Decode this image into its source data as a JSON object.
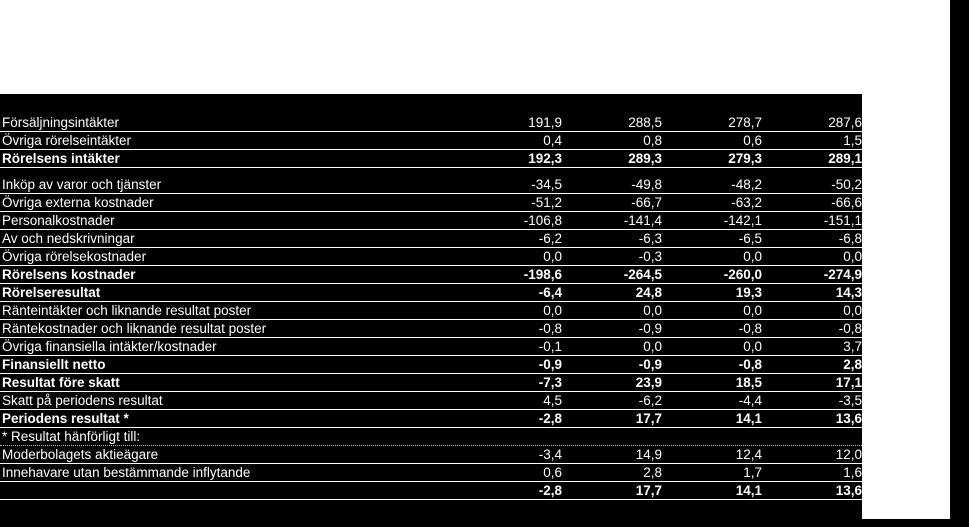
{
  "rows": [
    {
      "label": "Försäljningsintäkter",
      "v1": "191,9",
      "v2": "288,5",
      "v3": "278,7",
      "v4": "287,6"
    },
    {
      "label": "Övriga rörelseintäkter",
      "v1": "0,4",
      "v2": "0,8",
      "v3": "0,6",
      "v4": "1,5"
    },
    {
      "label": "Rörelsens intäkter",
      "v1": "192,3",
      "v2": "289,3",
      "v3": "279,3",
      "v4": "289,1"
    },
    {
      "label": "Inköp av varor och tjänster",
      "v1": "-34,5",
      "v2": "-49,8",
      "v3": "-48,2",
      "v4": "-50,2"
    },
    {
      "label": "Övriga externa kostnader",
      "v1": "-51,2",
      "v2": "-66,7",
      "v3": "-63,2",
      "v4": "-66,6"
    },
    {
      "label": "Personalkostnader",
      "v1": "-106,8",
      "v2": "-141,4",
      "v3": "-142,1",
      "v4": "-151,1"
    },
    {
      "label": "Av och nedskrivningar",
      "v1": "-6,2",
      "v2": "-6,3",
      "v3": "-6,5",
      "v4": "-6,8"
    },
    {
      "label": "Övriga rörelsekostnader",
      "v1": "0,0",
      "v2": "-0,3",
      "v3": "0,0",
      "v4": "0,0"
    },
    {
      "label": "Rörelsens kostnader",
      "v1": "-198,6",
      "v2": "-264,5",
      "v3": "-260,0",
      "v4": "-274,9"
    },
    {
      "label": "Rörelseresultat",
      "v1": "-6,4",
      "v2": "24,8",
      "v3": "19,3",
      "v4": "14,3"
    },
    {
      "label": "Ränteintäkter och liknande resultat poster",
      "v1": "0,0",
      "v2": "0,0",
      "v3": "0,0",
      "v4": "0,0"
    },
    {
      "label": "Räntekostnader och liknande resultat poster",
      "v1": "-0,8",
      "v2": "-0,9",
      "v3": "-0,8",
      "v4": "-0,8"
    },
    {
      "label": "Övriga finansiella intäkter/kostnader",
      "v1": "-0,1",
      "v2": "0,0",
      "v3": "0,0",
      "v4": "3,7"
    },
    {
      "label": "Finansiellt netto",
      "v1": "-0,9",
      "v2": "-0,9",
      "v3": "-0,8",
      "v4": "2,8"
    },
    {
      "label": "Resultat före skatt",
      "v1": "-7,3",
      "v2": "23,9",
      "v3": "18,5",
      "v4": "17,1"
    },
    {
      "label": "Skatt på periodens resultat",
      "v1": "4,5",
      "v2": "-6,2",
      "v3": "-4,4",
      "v4": "-3,5"
    },
    {
      "label": "Periodens resultat *",
      "v1": "-2,8",
      "v2": "17,7",
      "v3": "14,1",
      "v4": "13,6"
    },
    {
      "label": "* Resultat hänförligt till:",
      "v1": "",
      "v2": "",
      "v3": "",
      "v4": ""
    },
    {
      "label": "Moderbolagets aktieägare",
      "v1": "-3,4",
      "v2": "14,9",
      "v3": "12,4",
      "v4": "12,0"
    },
    {
      "label": "Innehavare utan bestämmande inflytande",
      "v1": "0,6",
      "v2": "2,8",
      "v3": "1,7",
      "v4": "1,6"
    },
    {
      "label": "",
      "v1": "-2,8",
      "v2": "17,7",
      "v3": "14,1",
      "v4": "13,6"
    }
  ]
}
